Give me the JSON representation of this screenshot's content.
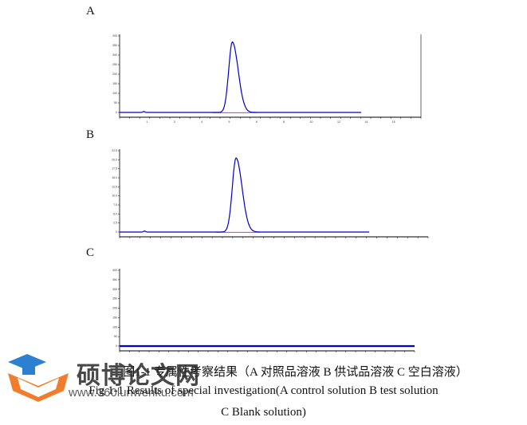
{
  "panels": [
    {
      "label": "A",
      "baseline_y": 0,
      "peak_x": 5.6,
      "peak_height": 350,
      "peak_width": 0.18,
      "ymax": 380,
      "xmax": 15,
      "yticks": [
        "0",
        "50",
        "100",
        "150",
        "200",
        "250",
        "300",
        "350",
        "400"
      ],
      "xticks": [
        "1",
        "3",
        "4",
        "5",
        "6",
        "8",
        "10",
        "12",
        "14",
        "15"
      ],
      "has_peak": true
    },
    {
      "label": "B",
      "baseline_y": 0,
      "peak_x": 5.6,
      "peak_height": 20.5,
      "peak_width": 0.18,
      "ymax": 22.5,
      "xmax": 15,
      "yticks": [
        "0",
        "2.5",
        "5.0",
        "7.5",
        "10.0",
        "12.5",
        "15.0",
        "17.5",
        "20.0",
        "22.5"
      ],
      "xticks": [],
      "has_peak": true
    },
    {
      "label": "C",
      "baseline_y": 0,
      "peak_x": null,
      "peak_height": 0,
      "peak_width": 0,
      "ymax": 400,
      "xmax": 15,
      "yticks": [
        "0",
        "50",
        "100",
        "150",
        "200",
        "250",
        "300",
        "350",
        "400"
      ],
      "xticks": [],
      "has_peak": false
    }
  ],
  "caption": {
    "cn": "图1-1 专属性考察结果（A 对照品溶液 B 供试品溶液 C 空白溶液）",
    "en_line1": "Fig 1-1 Results of special investigation(A control solution   B test solution",
    "en_line2": "C Blank solution)"
  },
  "watermark": {
    "text": "硕博论文网",
    "url": "www.360lunwenku.com"
  },
  "colors": {
    "trace": "#0000cc",
    "baseline": "#e000e0",
    "axis": "#000000",
    "logo_orange": "#f07d2e",
    "logo_blue": "#2d7fd0"
  }
}
